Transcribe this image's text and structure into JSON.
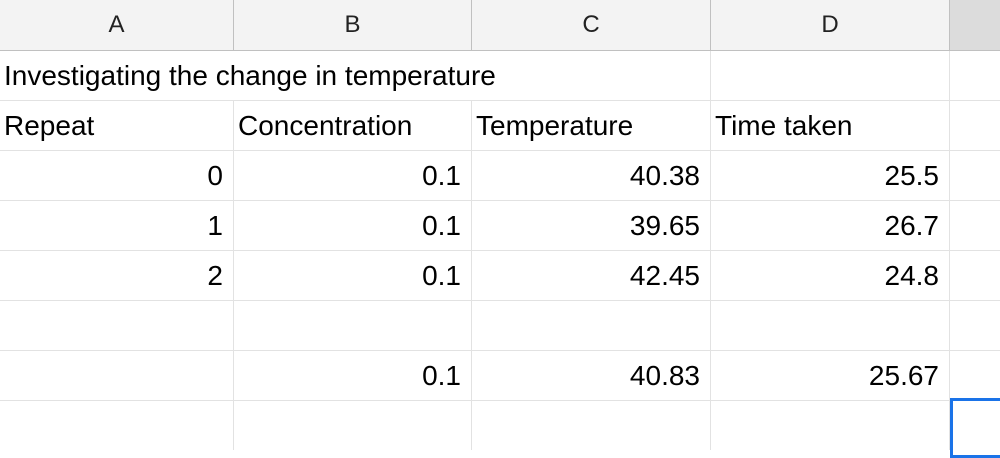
{
  "columns": [
    "A",
    "B",
    "C",
    "D"
  ],
  "title": "Investigating the change in temperature",
  "headers": [
    "Repeat",
    "Concentration",
    "Temperature",
    "Time taken"
  ],
  "rows": [
    [
      "0",
      "0.1",
      "40.38",
      "25.5"
    ],
    [
      "1",
      "0.1",
      "39.65",
      "26.7"
    ],
    [
      "2",
      "0.1",
      "42.45",
      "24.8"
    ]
  ],
  "averages": [
    "",
    "0.1",
    "40.83",
    "25.67"
  ]
}
